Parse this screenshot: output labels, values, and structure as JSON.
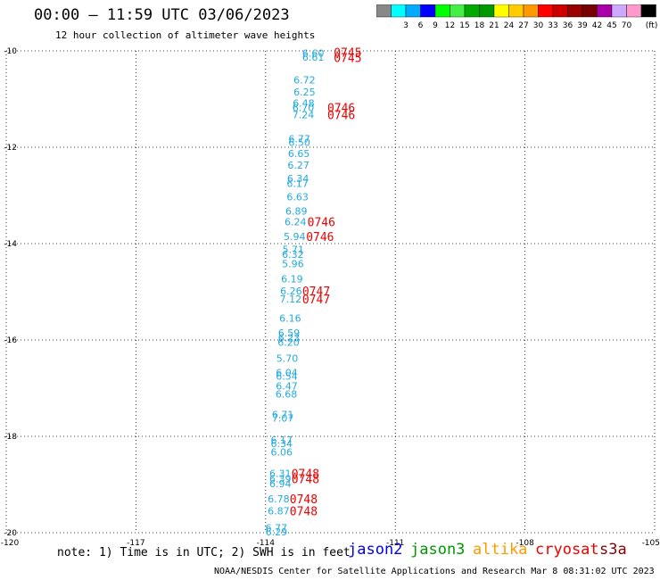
{
  "header": {
    "title": "00:00 – 11:59 UTC 03/06/2023",
    "subtitle": "12 hour collection of altimeter wave heights"
  },
  "colorbar": {
    "colors": [
      "#888888",
      "#00ffff",
      "#00aaff",
      "#0000ff",
      "#00ff00",
      "#44ee44",
      "#00aa00",
      "#009900",
      "#ffff00",
      "#ffcc00",
      "#ff9900",
      "#ff0000",
      "#cc0000",
      "#990000",
      "#770000",
      "#aa00aa",
      "#ccaaff",
      "#ff99cc",
      "#000000"
    ],
    "labels": [
      "3",
      "6",
      "9",
      "12",
      "15",
      "18",
      "21",
      "24",
      "27",
      "30",
      "33",
      "36",
      "39",
      "42",
      "45",
      "70",
      "(ft)"
    ]
  },
  "chart_data": {
    "type": "scatter",
    "title": "00:00 – 11:59 UTC 03/06/2023",
    "subtitle": "12 hour collection of altimeter wave heights",
    "xlim": [
      -120,
      -105
    ],
    "ylim": [
      -20,
      -10
    ],
    "x_ticks": [
      "-120",
      "-117",
      "-114",
      "-111",
      "-108",
      "-105"
    ],
    "y_ticks": [
      "-10",
      "-12",
      "-14",
      "-16",
      "-18",
      "-20"
    ],
    "grid": true,
    "swh_color": "#22aadd",
    "time_color": "#ee0000",
    "swh_labels": [
      {
        "x": -112.9,
        "y": -10.05,
        "text": "6.60"
      },
      {
        "x": -112.9,
        "y": -10.13,
        "text": "6.61"
      },
      {
        "x": -113.1,
        "y": -10.6,
        "text": "6.72"
      },
      {
        "x": -113.1,
        "y": -10.85,
        "text": "6.25"
      },
      {
        "x": -113.12,
        "y": -11.08,
        "text": "6.48"
      },
      {
        "x": -113.13,
        "y": -11.18,
        "text": "6.70"
      },
      {
        "x": -113.13,
        "y": -11.32,
        "text": "7.24"
      },
      {
        "x": -113.22,
        "y": -11.82,
        "text": "6.77"
      },
      {
        "x": -113.22,
        "y": -11.9,
        "text": "6.50"
      },
      {
        "x": -113.23,
        "y": -12.13,
        "text": "6.65"
      },
      {
        "x": -113.24,
        "y": -12.37,
        "text": "6.27"
      },
      {
        "x": -113.25,
        "y": -12.65,
        "text": "6.34"
      },
      {
        "x": -113.26,
        "y": -12.75,
        "text": "6.17"
      },
      {
        "x": -113.26,
        "y": -13.03,
        "text": "6.63"
      },
      {
        "x": -113.29,
        "y": -13.32,
        "text": "6.89"
      },
      {
        "x": -113.31,
        "y": -13.55,
        "text": "6.24"
      },
      {
        "x": -113.33,
        "y": -13.85,
        "text": "5.94"
      },
      {
        "x": -113.36,
        "y": -14.12,
        "text": "5.71"
      },
      {
        "x": -113.37,
        "y": -14.22,
        "text": "6.32"
      },
      {
        "x": -113.37,
        "y": -14.42,
        "text": "5.96"
      },
      {
        "x": -113.39,
        "y": -14.73,
        "text": "6.19"
      },
      {
        "x": -113.41,
        "y": -14.98,
        "text": "6.26"
      },
      {
        "x": -113.42,
        "y": -15.15,
        "text": "7.12"
      },
      {
        "x": -113.43,
        "y": -15.55,
        "text": "6.16"
      },
      {
        "x": -113.46,
        "y": -15.85,
        "text": "6.59"
      },
      {
        "x": -113.46,
        "y": -15.95,
        "text": "6.23"
      },
      {
        "x": -113.47,
        "y": -16.05,
        "text": "6.20"
      },
      {
        "x": -113.5,
        "y": -16.38,
        "text": "5.70"
      },
      {
        "x": -113.51,
        "y": -16.68,
        "text": "6.04"
      },
      {
        "x": -113.51,
        "y": -16.75,
        "text": "6.54"
      },
      {
        "x": -113.51,
        "y": -16.95,
        "text": "6.47"
      },
      {
        "x": -113.52,
        "y": -17.12,
        "text": "6.68"
      },
      {
        "x": -113.6,
        "y": -17.55,
        "text": "6.71"
      },
      {
        "x": -113.6,
        "y": -17.62,
        "text": "7.07"
      },
      {
        "x": -113.63,
        "y": -18.07,
        "text": "6.17"
      },
      {
        "x": -113.63,
        "y": -18.15,
        "text": "6.34"
      },
      {
        "x": -113.63,
        "y": -18.32,
        "text": "6.06"
      },
      {
        "x": -113.66,
        "y": -18.77,
        "text": "6.31"
      },
      {
        "x": -113.66,
        "y": -18.88,
        "text": "6.39"
      },
      {
        "x": -113.66,
        "y": -18.98,
        "text": "6.94"
      },
      {
        "x": -113.7,
        "y": -19.3,
        "text": "6.78"
      },
      {
        "x": -113.7,
        "y": -19.55,
        "text": "6.87"
      },
      {
        "x": -113.75,
        "y": -19.9,
        "text": "6.77"
      },
      {
        "x": -113.75,
        "y": -19.98,
        "text": "6.29"
      }
    ],
    "time_labels": [
      {
        "x": -112.1,
        "y": -10.03,
        "text": "0745"
      },
      {
        "x": -112.1,
        "y": -10.14,
        "text": "0745"
      },
      {
        "x": -112.25,
        "y": -11.18,
        "text": "0746"
      },
      {
        "x": -112.25,
        "y": -11.32,
        "text": "0746"
      },
      {
        "x": -112.71,
        "y": -13.55,
        "text": "0746"
      },
      {
        "x": -112.74,
        "y": -13.85,
        "text": "0746"
      },
      {
        "x": -112.83,
        "y": -14.98,
        "text": "0747"
      },
      {
        "x": -112.83,
        "y": -15.15,
        "text": "0747"
      },
      {
        "x": -113.08,
        "y": -18.77,
        "text": "0748"
      },
      {
        "x": -113.08,
        "y": -18.88,
        "text": "0748"
      },
      {
        "x": -113.12,
        "y": -19.3,
        "text": "0748"
      },
      {
        "x": -113.12,
        "y": -19.55,
        "text": "0748"
      }
    ]
  },
  "footer": {
    "note": "note: 1) Time is in UTC; 2) SWH is in feet",
    "satellites": [
      {
        "name": "jason2",
        "color": "#0000ee"
      },
      {
        "name": "jason3",
        "color": "#009900"
      },
      {
        "name": "altika",
        "color": "#ff9900"
      },
      {
        "name": "cryosat",
        "color": "#ee0000"
      },
      {
        "name": "s3a",
        "color": "#880000"
      }
    ],
    "credit": "NOAA/NESDIS Center for Satellite Applications and Research   Mar  8 08:31:02 UTC 2023"
  }
}
